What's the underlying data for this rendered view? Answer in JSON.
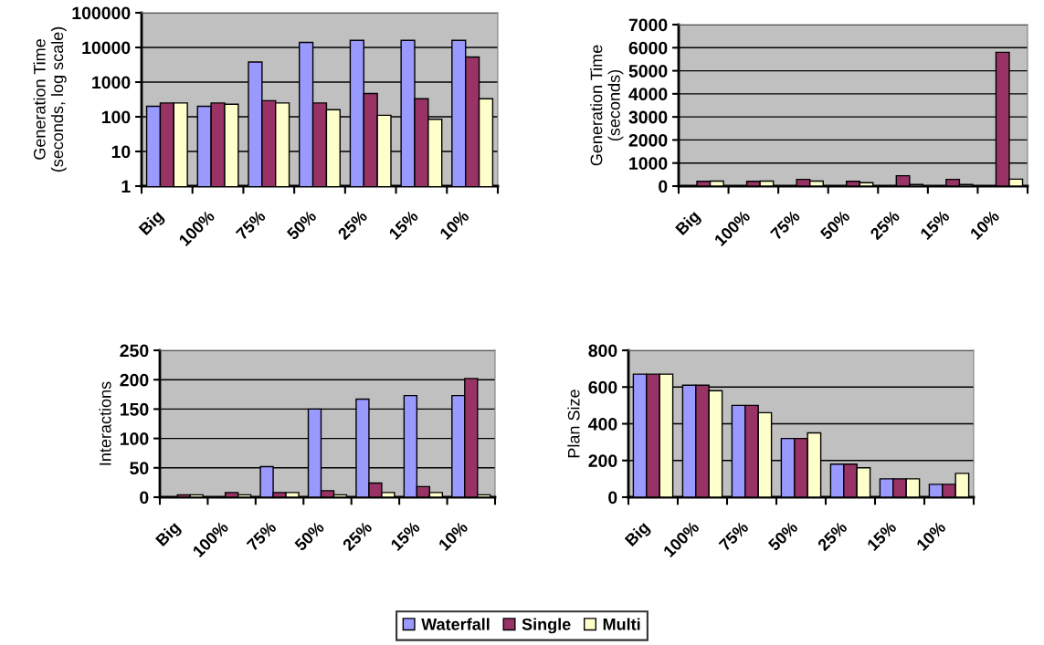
{
  "chart_data": [
    {
      "type": "bar",
      "ylabel": "Generation Time\n(seconds, log scale)",
      "log": "y",
      "grid": "y",
      "legend": "bottom",
      "categories": [
        "Big",
        "100%",
        "75%",
        "50%",
        "25%",
        "15%",
        "10%"
      ],
      "ylim": [
        1,
        100000
      ],
      "yticks": [
        1,
        10,
        100,
        1000,
        10000,
        100000
      ],
      "series": [
        {
          "name": "Waterfall",
          "color": "#9999ff",
          "values": [
            200,
            200,
            3800,
            14000,
            16000,
            16000,
            16000
          ]
        },
        {
          "name": "Single",
          "color": "#993366",
          "values": [
            250,
            250,
            290,
            250,
            470,
            330,
            5300
          ]
        },
        {
          "name": "Multi",
          "color": "#ffffcc",
          "values": [
            250,
            230,
            250,
            160,
            110,
            85,
            330
          ]
        }
      ]
    },
    {
      "type": "bar",
      "ylabel": "Generation Time\n(seconds)",
      "grid": "y",
      "categories": [
        "Big",
        "100%",
        "75%",
        "50%",
        "25%",
        "15%",
        "10%"
      ],
      "ylim": [
        0,
        7000
      ],
      "yticks": [
        0,
        1000,
        2000,
        3000,
        4000,
        5000,
        6000,
        7000
      ],
      "series": [
        {
          "color": "#9999ff",
          "values": [
            null,
            null,
            null,
            null,
            null,
            null,
            null
          ]
        },
        {
          "color": "#993366",
          "values": [
            210,
            210,
            290,
            210,
            450,
            290,
            5800
          ]
        },
        {
          "color": "#ffffcc",
          "values": [
            220,
            220,
            220,
            150,
            70,
            70,
            300
          ]
        }
      ]
    },
    {
      "type": "bar",
      "ylabel": "Interactions",
      "grid": "y",
      "categories": [
        "Big",
        "100%",
        "75%",
        "50%",
        "25%",
        "15%",
        "10%"
      ],
      "ylim": [
        0,
        250
      ],
      "yticks": [
        0,
        50,
        100,
        150,
        200,
        250
      ],
      "series": [
        {
          "color": "#9999ff",
          "values": [
            null,
            null,
            52,
            150,
            167,
            173,
            173
          ]
        },
        {
          "color": "#993366",
          "values": [
            4,
            8,
            8,
            11,
            24,
            18,
            202
          ]
        },
        {
          "color": "#ffffcc",
          "values": [
            4,
            4,
            8,
            4,
            8,
            8,
            4
          ]
        }
      ]
    },
    {
      "type": "bar",
      "ylabel": "Plan Size",
      "grid": "y",
      "categories": [
        "Big",
        "100%",
        "75%",
        "50%",
        "25%",
        "15%",
        "10%"
      ],
      "ylim": [
        0,
        800
      ],
      "yticks": [
        0,
        200,
        400,
        600,
        800
      ],
      "series": [
        {
          "color": "#9999ff",
          "values": [
            670,
            610,
            500,
            320,
            180,
            100,
            70
          ]
        },
        {
          "color": "#993366",
          "values": [
            670,
            610,
            500,
            320,
            180,
            100,
            70
          ]
        },
        {
          "color": "#ffffcc",
          "values": [
            670,
            580,
            460,
            350,
            160,
            100,
            130
          ]
        }
      ]
    }
  ]
}
